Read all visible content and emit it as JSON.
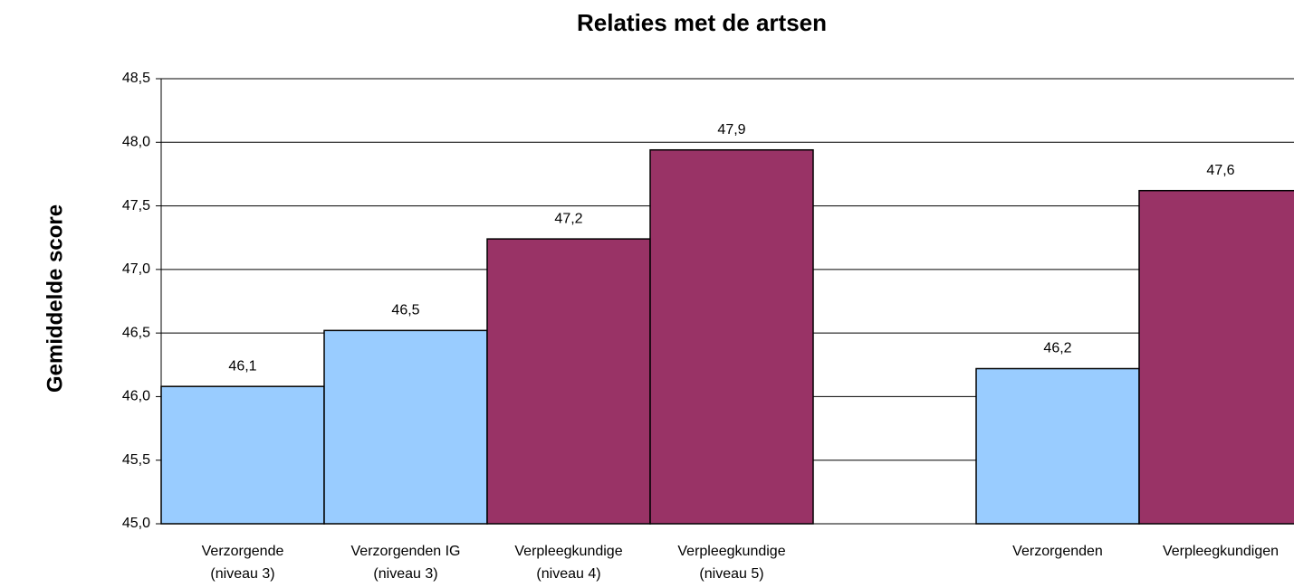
{
  "chart_data": {
    "type": "bar",
    "title": "Relaties met de artsen",
    "y_label": "Gemiddelde score",
    "categories": [
      [
        "Verzorgende",
        "(niveau 3)"
      ],
      [
        "Verzorgenden IG",
        "(niveau 3)"
      ],
      [
        "Verpleegkundige",
        "(niveau 4)"
      ],
      [
        "Verpleegkundige",
        "(niveau 5)"
      ],
      null,
      [
        "Verzorgenden"
      ],
      [
        "Verpleegkundigen"
      ]
    ],
    "values": [
      46.08,
      46.52,
      47.24,
      47.94,
      null,
      46.22,
      47.62
    ],
    "value_labels": [
      "46,1",
      "46,5",
      "47,2",
      "47,9",
      null,
      "46,2",
      "47,6"
    ],
    "colors": [
      "#99ccff",
      "#99ccff",
      "#993366",
      "#993366",
      null,
      "#99ccff",
      "#993366"
    ],
    "ylim": [
      45,
      48.5
    ],
    "yticks": [
      {
        "value": 45,
        "label": "45,0"
      },
      {
        "value": 45.5,
        "label": "45,5"
      },
      {
        "value": 46,
        "label": "46,0"
      },
      {
        "value": 46.5,
        "label": "46,5"
      },
      {
        "value": 47,
        "label": "47,0"
      },
      {
        "value": 47.5,
        "label": "47,5"
      },
      {
        "value": 48,
        "label": "48,0"
      },
      {
        "value": 48.5,
        "label": "48,5"
      }
    ],
    "grid": true
  }
}
